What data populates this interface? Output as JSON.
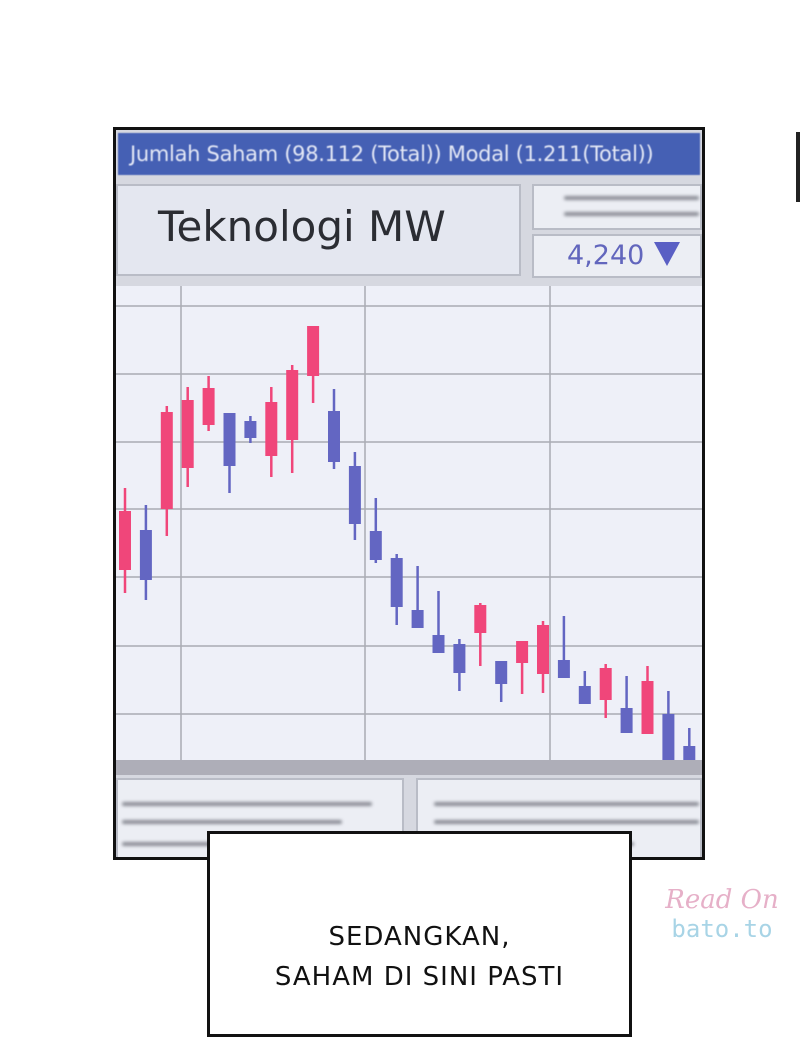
{
  "header": {
    "title_bar": "Jumlah Saham (98.112 (Total)) Modal (1.211(Total))",
    "stock_name": "Teknologi MW",
    "price": "4,240",
    "price_direction_icon": "triangle-down-icon",
    "price_color": "#5a5fc4"
  },
  "chart_data": {
    "type": "candlestick",
    "title": "",
    "xlabel": "",
    "ylabel": "",
    "grid": true,
    "ylim": [
      0,
      474
    ],
    "colors": {
      "up": "#f0467a",
      "down": "#6366c2",
      "background": "#eef0f8",
      "grid": "#a9abb3"
    },
    "candles": [
      {
        "o": 190,
        "h": 272,
        "l": 167,
        "c": 249
      },
      {
        "o": 230,
        "h": 255,
        "l": 160,
        "c": 180
      },
      {
        "o": 251,
        "h": 354,
        "l": 224,
        "c": 348
      },
      {
        "o": 292,
        "h": 373,
        "l": 273,
        "c": 360
      },
      {
        "o": 335,
        "h": 384,
        "l": 329,
        "c": 372
      },
      {
        "o": 347,
        "h": 347,
        "l": 267,
        "c": 294
      },
      {
        "o": 339,
        "h": 344,
        "l": 317,
        "c": 322
      },
      {
        "o": 304,
        "h": 373,
        "l": 283,
        "c": 358
      },
      {
        "o": 320,
        "h": 395,
        "l": 287,
        "c": 390
      },
      {
        "o": 384,
        "h": 434,
        "l": 357,
        "c": 434
      },
      {
        "o": 349,
        "h": 371,
        "l": 291,
        "c": 298
      },
      {
        "o": 294,
        "h": 308,
        "l": 220,
        "c": 236
      },
      {
        "o": 229,
        "h": 262,
        "l": 197,
        "c": 200
      },
      {
        "o": 202,
        "h": 206,
        "l": 135,
        "c": 153
      },
      {
        "o": 150,
        "h": 194,
        "l": 132,
        "c": 132
      },
      {
        "o": 125,
        "h": 169,
        "l": 107,
        "c": 107
      },
      {
        "o": 116,
        "h": 121,
        "l": 69,
        "c": 87
      },
      {
        "o": 127,
        "h": 157,
        "l": 94,
        "c": 155
      },
      {
        "o": 99,
        "h": 99,
        "l": 58,
        "c": 76
      },
      {
        "o": 97,
        "h": 119,
        "l": 66,
        "c": 119
      },
      {
        "o": 86,
        "h": 139,
        "l": 67,
        "c": 135
      },
      {
        "o": 100,
        "h": 144,
        "l": 82,
        "c": 82
      },
      {
        "o": 74,
        "h": 89,
        "l": 56,
        "c": 56
      },
      {
        "o": 60,
        "h": 96,
        "l": 42,
        "c": 92
      },
      {
        "o": 52,
        "h": 84,
        "l": 27,
        "c": 27
      },
      {
        "o": 26,
        "h": 94,
        "l": 26,
        "c": 79
      },
      {
        "o": 46,
        "h": 69,
        "l": 0,
        "c": 0
      },
      {
        "o": 14,
        "h": 32,
        "l": 0,
        "c": 0
      }
    ]
  },
  "caption": {
    "line1": "SEDANGKAN,",
    "line2": "SAHAM DI SINI PASTI"
  },
  "watermark": {
    "line1": "Read On",
    "line2": "bato.to"
  }
}
